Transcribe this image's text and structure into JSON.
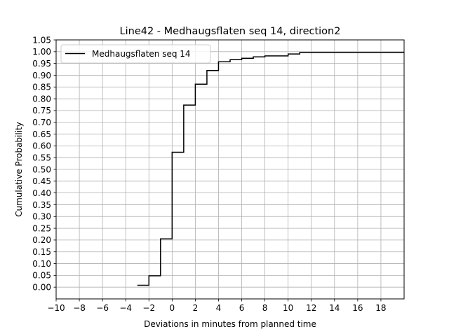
{
  "chart_data": {
    "type": "line",
    "drawstyle": "steps-post",
    "title": "Line42 - Medhaugsflaten seq 14, direction2",
    "xlabel": "Deviations in minutes from planned time",
    "ylabel": "Cumulative Probability",
    "xlim": [
      -10,
      20
    ],
    "ylim": [
      -0.05,
      1.05
    ],
    "xticks": [
      -10,
      -8,
      -6,
      -4,
      -2,
      0,
      2,
      4,
      6,
      8,
      10,
      12,
      14,
      16,
      18
    ],
    "xtick_labels": [
      "−10",
      "−8",
      "−6",
      "−4",
      "−2",
      "0",
      "2",
      "4",
      "6",
      "8",
      "10",
      "12",
      "14",
      "16",
      "18"
    ],
    "yticks": [
      0.0,
      0.05,
      0.1,
      0.15,
      0.2,
      0.25,
      0.3,
      0.35,
      0.4,
      0.45,
      0.5,
      0.55,
      0.6,
      0.65,
      0.7,
      0.75,
      0.8,
      0.85,
      0.9,
      0.95,
      1.0,
      1.05
    ],
    "ytick_labels": [
      "0.00",
      "0.05",
      "0.10",
      "0.15",
      "0.20",
      "0.25",
      "0.30",
      "0.35",
      "0.40",
      "0.45",
      "0.50",
      "0.55",
      "0.60",
      "0.65",
      "0.70",
      "0.75",
      "0.80",
      "0.85",
      "0.90",
      "0.95",
      "1.00",
      "1.05"
    ],
    "grid": true,
    "legend_position": "top-left",
    "series": [
      {
        "name": "Medhaugsflaten seq 14",
        "color": "#000000",
        "x": [
          -3,
          -2,
          -1,
          0,
          1,
          2,
          3,
          4,
          5,
          6,
          7,
          8,
          10,
          11,
          20
        ],
        "y": [
          0.008,
          0.048,
          0.205,
          0.573,
          0.773,
          0.862,
          0.92,
          0.957,
          0.966,
          0.972,
          0.978,
          0.982,
          0.99,
          0.996,
          0.996
        ]
      }
    ]
  }
}
